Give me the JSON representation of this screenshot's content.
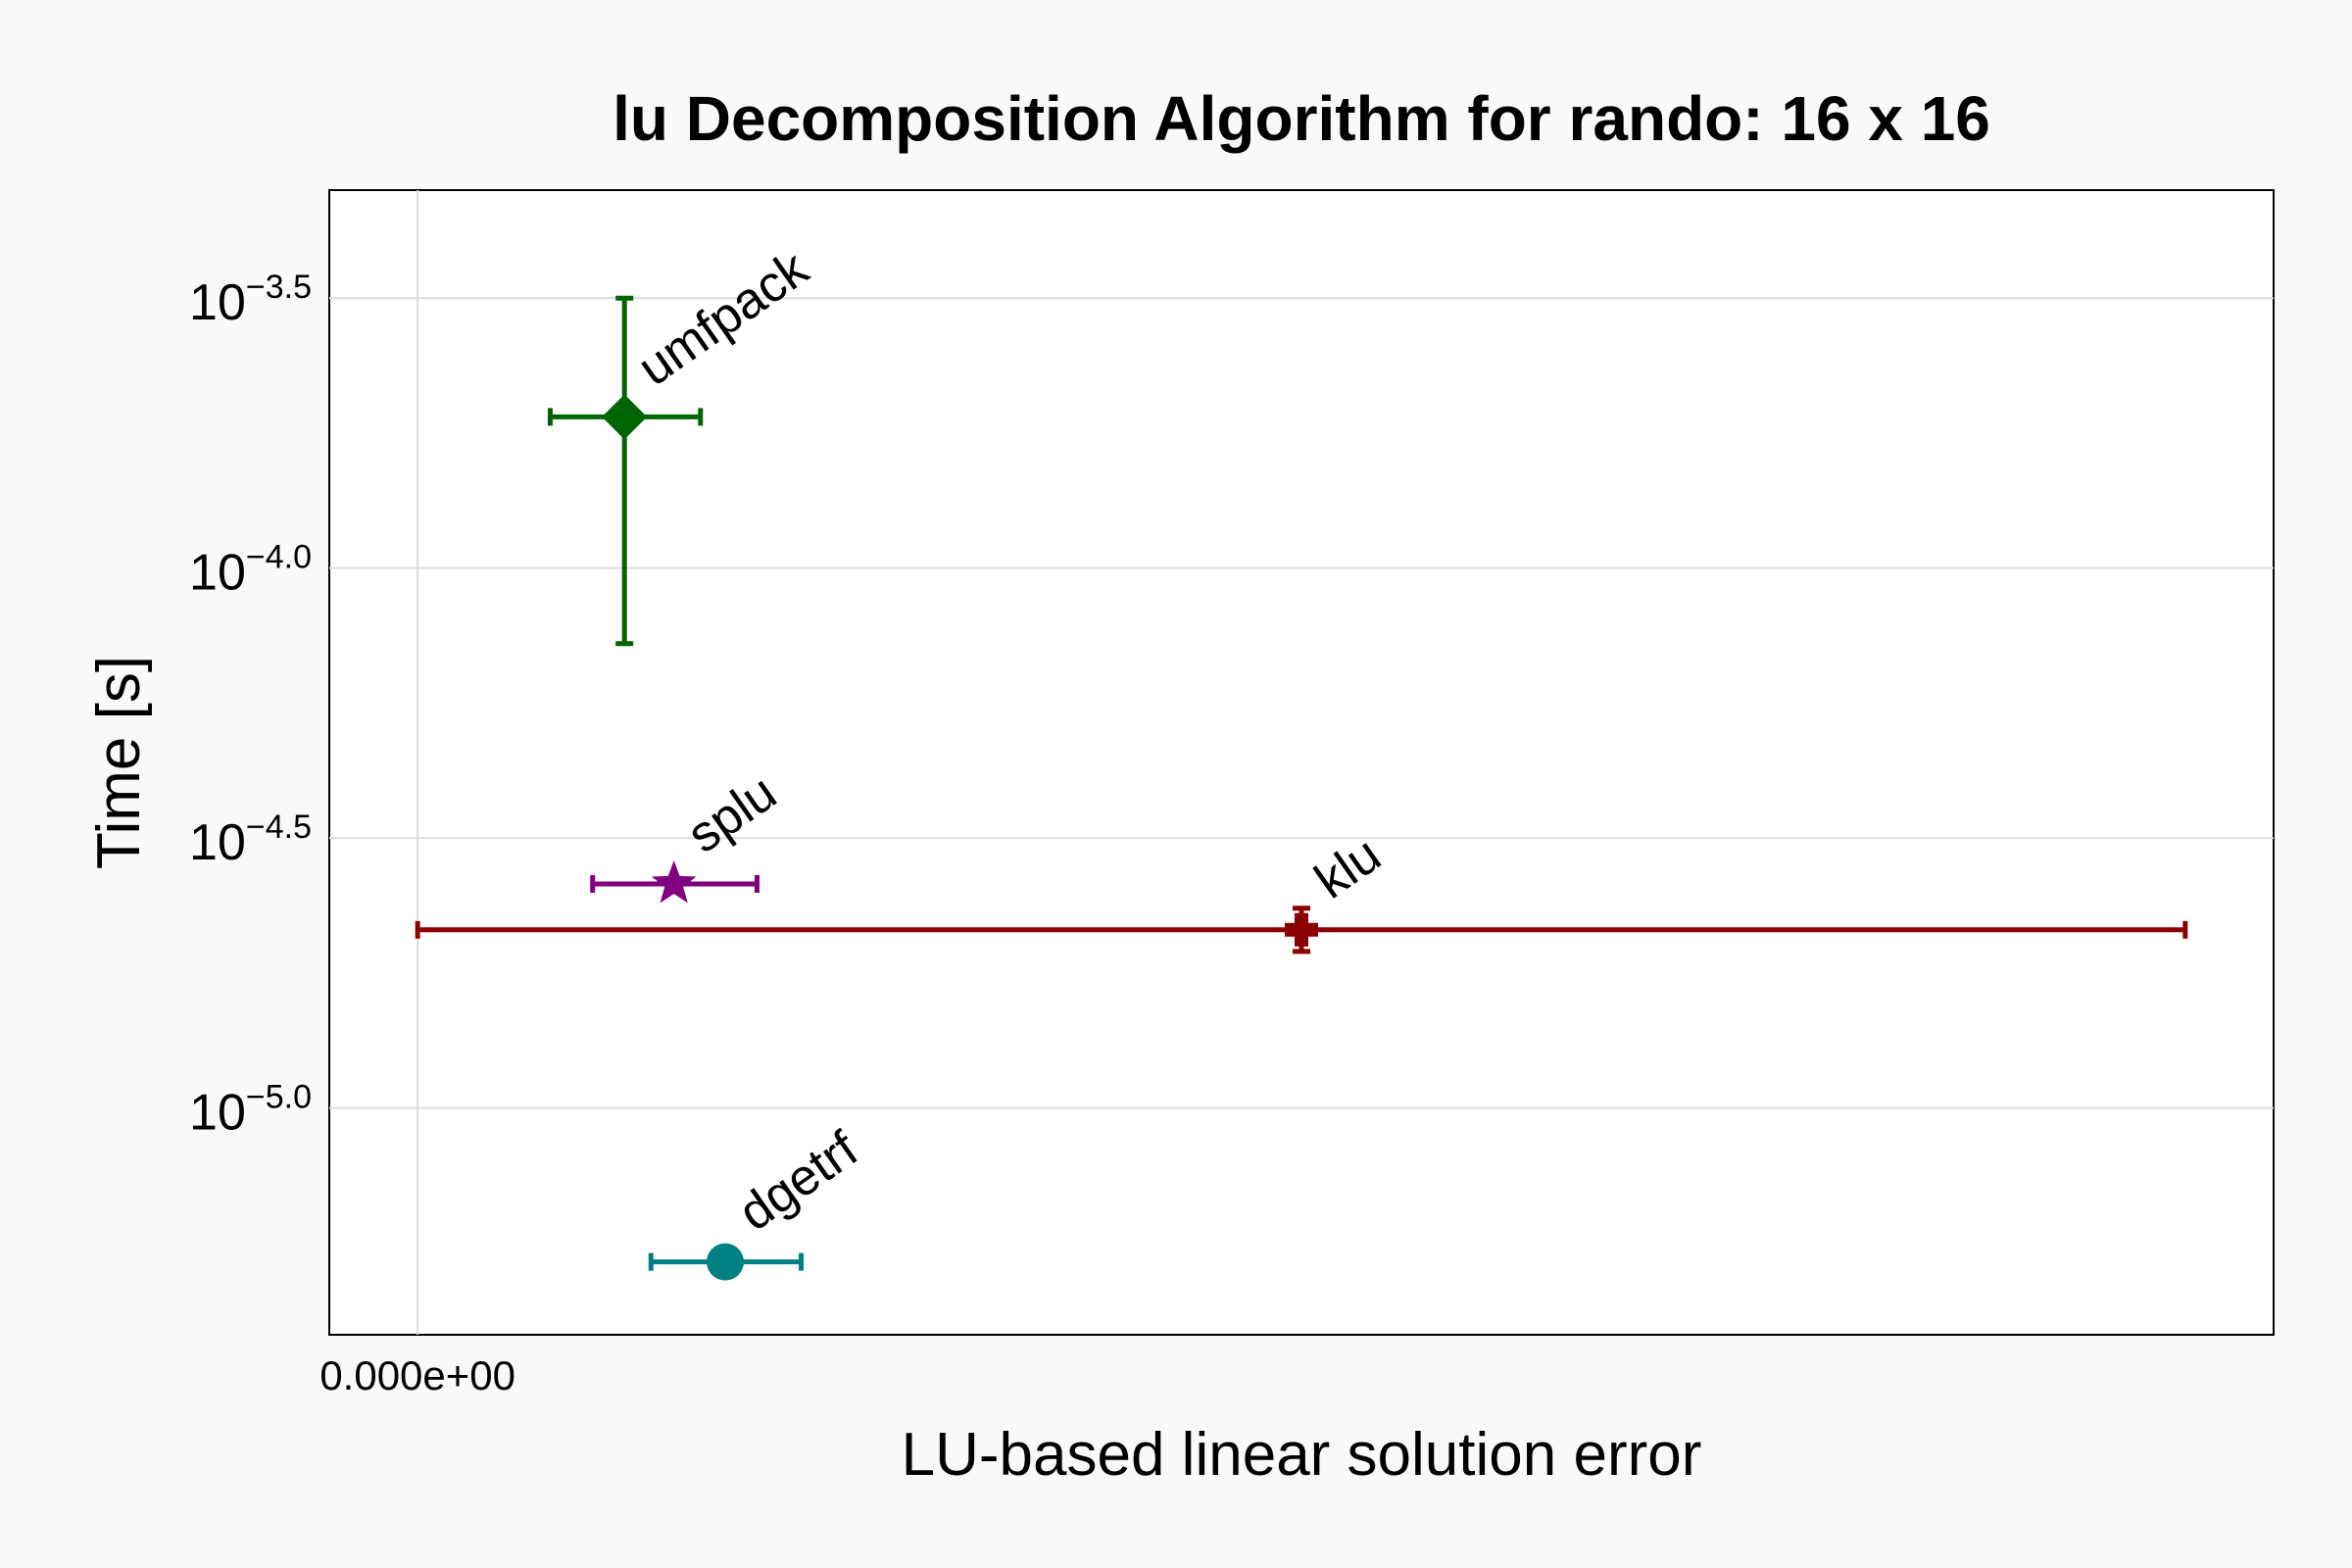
{
  "chart_data": {
    "type": "scatter",
    "title": "lu Decomposition Algorithm for rando: 16 x 16",
    "xlabel": "LU-based linear solution error",
    "ylabel": "Time [s]",
    "yscale": "log10",
    "xlim": [
      -0.05,
      1.05
    ],
    "ylim_log10": [
      -5.42,
      -3.3
    ],
    "x_ticks": [
      {
        "value": 0,
        "label": "0.000e+00"
      }
    ],
    "y_ticks": [
      {
        "log10": -3.5,
        "base": "10",
        "exp": "−3.5"
      },
      {
        "log10": -4.0,
        "base": "10",
        "exp": "−4.0"
      },
      {
        "log10": -4.5,
        "base": "10",
        "exp": "−4.5"
      },
      {
        "log10": -5.0,
        "base": "10",
        "exp": "−5.0"
      }
    ],
    "grid": true,
    "series": [
      {
        "name": "umfpack",
        "marker": "diamond",
        "color": "#006400",
        "x": 0.117,
        "x_err": [
          0.075,
          0.16
        ],
        "y_log10": -3.72,
        "y_err_log10": [
          -4.14,
          -3.5
        ]
      },
      {
        "name": "splu",
        "marker": "star",
        "color": "#800080",
        "x": 0.145,
        "x_err": [
          0.099,
          0.192
        ],
        "y_log10": -4.585,
        "y_err_log10": [
          -4.585,
          -4.585
        ]
      },
      {
        "name": "klu",
        "marker": "cross",
        "color": "#8b0000",
        "x": 0.5,
        "x_err": [
          0.0,
          1.0
        ],
        "y_log10": -4.67,
        "y_err_log10": [
          -4.71,
          -4.63
        ]
      },
      {
        "name": "dgetrf",
        "marker": "circle",
        "color": "#008080",
        "x": 0.174,
        "x_err": [
          0.132,
          0.217
        ],
        "y_log10": -5.285,
        "y_err_log10": [
          -5.31,
          -5.26
        ]
      }
    ]
  }
}
